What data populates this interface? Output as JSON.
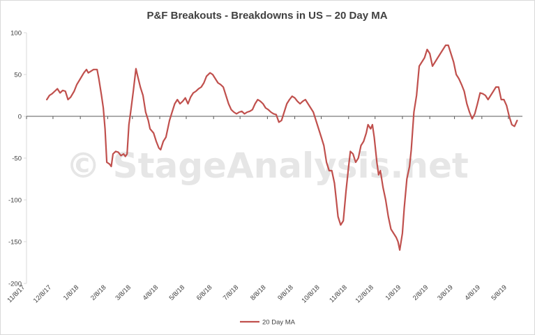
{
  "chart_data": {
    "type": "line",
    "title": "P&F Breakouts - Breakdowns in US – 20 Day MA",
    "watermark": "© StageAnalysis.net",
    "xlabel": "",
    "ylabel": "",
    "ylim": [
      -200,
      100
    ],
    "y_ticks": [
      100,
      50,
      0,
      -50,
      -100,
      -150,
      -200
    ],
    "x_range": [
      "2017-11-08",
      "2019-05-24"
    ],
    "x_ticks": [
      "11/8/17",
      "12/8/17",
      "1/8/18",
      "2/8/18",
      "3/8/18",
      "4/8/18",
      "5/8/18",
      "6/8/18",
      "7/8/18",
      "8/8/18",
      "9/8/18",
      "10/8/18",
      "11/8/18",
      "12/8/18",
      "1/8/19",
      "2/8/19",
      "3/8/19",
      "4/8/19",
      "5/8/19"
    ],
    "x_tick_dates": [
      "2017-11-08",
      "2017-12-08",
      "2018-01-08",
      "2018-02-08",
      "2018-03-08",
      "2018-04-08",
      "2018-05-08",
      "2018-06-08",
      "2018-07-08",
      "2018-08-08",
      "2018-09-08",
      "2018-10-08",
      "2018-11-08",
      "2018-12-08",
      "2019-01-08",
      "2019-02-08",
      "2019-03-08",
      "2019-04-08",
      "2019-05-08"
    ],
    "grid": false,
    "legend": "bottom",
    "series": [
      {
        "name": "20 Day MA",
        "color": "#c0504d",
        "points": [
          [
            "2017-12-01",
            20
          ],
          [
            "2017-12-04",
            25
          ],
          [
            "2017-12-07",
            27
          ],
          [
            "2017-12-10",
            30
          ],
          [
            "2017-12-13",
            33
          ],
          [
            "2017-12-16",
            28
          ],
          [
            "2017-12-19",
            31
          ],
          [
            "2017-12-22",
            30
          ],
          [
            "2017-12-25",
            20
          ],
          [
            "2017-12-28",
            23
          ],
          [
            "2018-01-01",
            30
          ],
          [
            "2018-01-04",
            38
          ],
          [
            "2018-01-08",
            45
          ],
          [
            "2018-01-12",
            52
          ],
          [
            "2018-01-15",
            56
          ],
          [
            "2018-01-17",
            52
          ],
          [
            "2018-01-20",
            54
          ],
          [
            "2018-01-23",
            56
          ],
          [
            "2018-01-27",
            56
          ],
          [
            "2018-01-29",
            45
          ],
          [
            "2018-02-01",
            25
          ],
          [
            "2018-02-03",
            10
          ],
          [
            "2018-02-05",
            -15
          ],
          [
            "2018-02-07",
            -55
          ],
          [
            "2018-02-10",
            -57
          ],
          [
            "2018-02-12",
            -60
          ],
          [
            "2018-02-14",
            -45
          ],
          [
            "2018-02-17",
            -42
          ],
          [
            "2018-02-20",
            -43
          ],
          [
            "2018-02-23",
            -47
          ],
          [
            "2018-02-26",
            -45
          ],
          [
            "2018-02-28",
            -48
          ],
          [
            "2018-03-02",
            -45
          ],
          [
            "2018-03-04",
            -10
          ],
          [
            "2018-03-06",
            5
          ],
          [
            "2018-03-09",
            30
          ],
          [
            "2018-03-12",
            57
          ],
          [
            "2018-03-14",
            48
          ],
          [
            "2018-03-17",
            35
          ],
          [
            "2018-03-20",
            25
          ],
          [
            "2018-03-23",
            5
          ],
          [
            "2018-03-26",
            -5
          ],
          [
            "2018-03-28",
            -15
          ],
          [
            "2018-04-01",
            -20
          ],
          [
            "2018-04-04",
            -30
          ],
          [
            "2018-04-07",
            -38
          ],
          [
            "2018-04-09",
            -40
          ],
          [
            "2018-04-12",
            -30
          ],
          [
            "2018-04-15",
            -25
          ],
          [
            "2018-04-19",
            -5
          ],
          [
            "2018-04-22",
            5
          ],
          [
            "2018-04-25",
            15
          ],
          [
            "2018-04-28",
            20
          ],
          [
            "2018-05-01",
            15
          ],
          [
            "2018-05-04",
            18
          ],
          [
            "2018-05-07",
            22
          ],
          [
            "2018-05-10",
            15
          ],
          [
            "2018-05-13",
            23
          ],
          [
            "2018-05-16",
            28
          ],
          [
            "2018-05-19",
            30
          ],
          [
            "2018-05-22",
            33
          ],
          [
            "2018-05-25",
            35
          ],
          [
            "2018-05-28",
            40
          ],
          [
            "2018-05-31",
            48
          ],
          [
            "2018-06-04",
            52
          ],
          [
            "2018-06-07",
            50
          ],
          [
            "2018-06-10",
            45
          ],
          [
            "2018-06-13",
            40
          ],
          [
            "2018-06-16",
            38
          ],
          [
            "2018-06-19",
            35
          ],
          [
            "2018-06-22",
            25
          ],
          [
            "2018-06-25",
            15
          ],
          [
            "2018-06-28",
            8
          ],
          [
            "2018-07-01",
            5
          ],
          [
            "2018-07-04",
            3
          ],
          [
            "2018-07-07",
            5
          ],
          [
            "2018-07-10",
            6
          ],
          [
            "2018-07-13",
            3
          ],
          [
            "2018-07-16",
            5
          ],
          [
            "2018-07-19",
            6
          ],
          [
            "2018-07-22",
            8
          ],
          [
            "2018-07-25",
            15
          ],
          [
            "2018-07-28",
            20
          ],
          [
            "2018-07-31",
            18
          ],
          [
            "2018-08-03",
            15
          ],
          [
            "2018-08-06",
            10
          ],
          [
            "2018-08-09",
            8
          ],
          [
            "2018-08-12",
            5
          ],
          [
            "2018-08-15",
            3
          ],
          [
            "2018-08-18",
            2
          ],
          [
            "2018-08-21",
            -7
          ],
          [
            "2018-08-24",
            -5
          ],
          [
            "2018-08-27",
            5
          ],
          [
            "2018-08-30",
            15
          ],
          [
            "2018-09-02",
            20
          ],
          [
            "2018-09-05",
            24
          ],
          [
            "2018-09-08",
            22
          ],
          [
            "2018-09-11",
            18
          ],
          [
            "2018-09-14",
            15
          ],
          [
            "2018-09-17",
            18
          ],
          [
            "2018-09-20",
            20
          ],
          [
            "2018-09-23",
            15
          ],
          [
            "2018-09-26",
            10
          ],
          [
            "2018-09-29",
            5
          ],
          [
            "2018-10-02",
            -5
          ],
          [
            "2018-10-05",
            -15
          ],
          [
            "2018-10-08",
            -25
          ],
          [
            "2018-10-11",
            -35
          ],
          [
            "2018-10-14",
            -55
          ],
          [
            "2018-10-17",
            -65
          ],
          [
            "2018-10-20",
            -65
          ],
          [
            "2018-10-23",
            -80
          ],
          [
            "2018-10-25",
            -100
          ],
          [
            "2018-10-27",
            -120
          ],
          [
            "2018-10-30",
            -130
          ],
          [
            "2018-11-02",
            -125
          ],
          [
            "2018-11-05",
            -90
          ],
          [
            "2018-11-08",
            -60
          ],
          [
            "2018-11-10",
            -42
          ],
          [
            "2018-11-13",
            -45
          ],
          [
            "2018-11-16",
            -55
          ],
          [
            "2018-11-19",
            -50
          ],
          [
            "2018-11-22",
            -35
          ],
          [
            "2018-11-25",
            -30
          ],
          [
            "2018-11-28",
            -20
          ],
          [
            "2018-11-30",
            -10
          ],
          [
            "2018-12-03",
            -15
          ],
          [
            "2018-12-05",
            -10
          ],
          [
            "2018-12-07",
            -25
          ],
          [
            "2018-12-10",
            -55
          ],
          [
            "2018-12-12",
            -70
          ],
          [
            "2018-12-14",
            -65
          ],
          [
            "2018-12-17",
            -85
          ],
          [
            "2018-12-20",
            -100
          ],
          [
            "2018-12-23",
            -120
          ],
          [
            "2018-12-26",
            -135
          ],
          [
            "2018-12-29",
            -140
          ],
          [
            "2019-01-01",
            -145
          ],
          [
            "2019-01-03",
            -150
          ],
          [
            "2019-01-05",
            -160
          ],
          [
            "2019-01-08",
            -140
          ],
          [
            "2019-01-10",
            -110
          ],
          [
            "2019-01-13",
            -75
          ],
          [
            "2019-01-16",
            -60
          ],
          [
            "2019-01-18",
            -40
          ],
          [
            "2019-01-21",
            5
          ],
          [
            "2019-01-24",
            25
          ],
          [
            "2019-01-27",
            60
          ],
          [
            "2019-01-30",
            65
          ],
          [
            "2019-02-02",
            70
          ],
          [
            "2019-02-05",
            80
          ],
          [
            "2019-02-08",
            75
          ],
          [
            "2019-02-11",
            60
          ],
          [
            "2019-02-14",
            65
          ],
          [
            "2019-02-17",
            70
          ],
          [
            "2019-02-20",
            75
          ],
          [
            "2019-02-23",
            80
          ],
          [
            "2019-02-26",
            85
          ],
          [
            "2019-03-01",
            85
          ],
          [
            "2019-03-04",
            75
          ],
          [
            "2019-03-07",
            65
          ],
          [
            "2019-03-10",
            50
          ],
          [
            "2019-03-13",
            45
          ],
          [
            "2019-03-16",
            38
          ],
          [
            "2019-03-19",
            30
          ],
          [
            "2019-03-22",
            15
          ],
          [
            "2019-03-25",
            5
          ],
          [
            "2019-03-28",
            -3
          ],
          [
            "2019-03-31",
            3
          ],
          [
            "2019-04-03",
            15
          ],
          [
            "2019-04-06",
            28
          ],
          [
            "2019-04-09",
            27
          ],
          [
            "2019-04-12",
            25
          ],
          [
            "2019-04-15",
            20
          ],
          [
            "2019-04-18",
            25
          ],
          [
            "2019-04-21",
            30
          ],
          [
            "2019-04-24",
            35
          ],
          [
            "2019-04-27",
            35
          ],
          [
            "2019-04-30",
            20
          ],
          [
            "2019-05-03",
            20
          ],
          [
            "2019-05-06",
            13
          ],
          [
            "2019-05-09",
            0
          ],
          [
            "2019-05-12",
            -10
          ],
          [
            "2019-05-15",
            -12
          ],
          [
            "2019-05-18",
            -5
          ]
        ]
      }
    ]
  }
}
